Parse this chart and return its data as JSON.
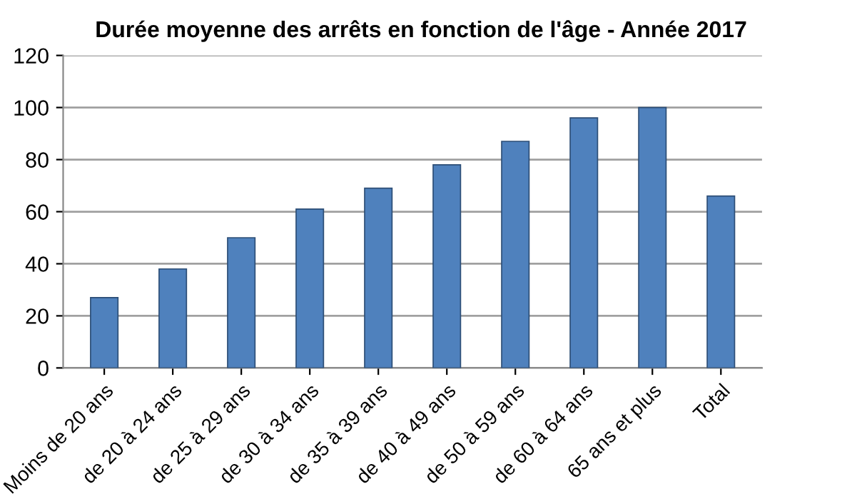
{
  "chart_data": {
    "type": "bar",
    "title": "Durée moyenne des arrêts en fonction de l'âge - Année 2017",
    "categories": [
      "Moins de 20 ans",
      "de 20 à 24 ans",
      "de 25 à 29 ans",
      "de 30 à 34 ans",
      "de 35 à 39 ans",
      "de 40 à 49 ans",
      "de 50 à 59 ans",
      "de 60 à 64 ans",
      "65 ans et plus",
      "Total"
    ],
    "values": [
      27,
      38,
      50,
      61,
      69,
      78,
      87,
      96,
      100,
      66
    ],
    "color": "#4f81bd",
    "ylim": [
      0,
      120
    ],
    "yticks": [
      0,
      20,
      40,
      60,
      80,
      100,
      120
    ],
    "grid": "y"
  }
}
